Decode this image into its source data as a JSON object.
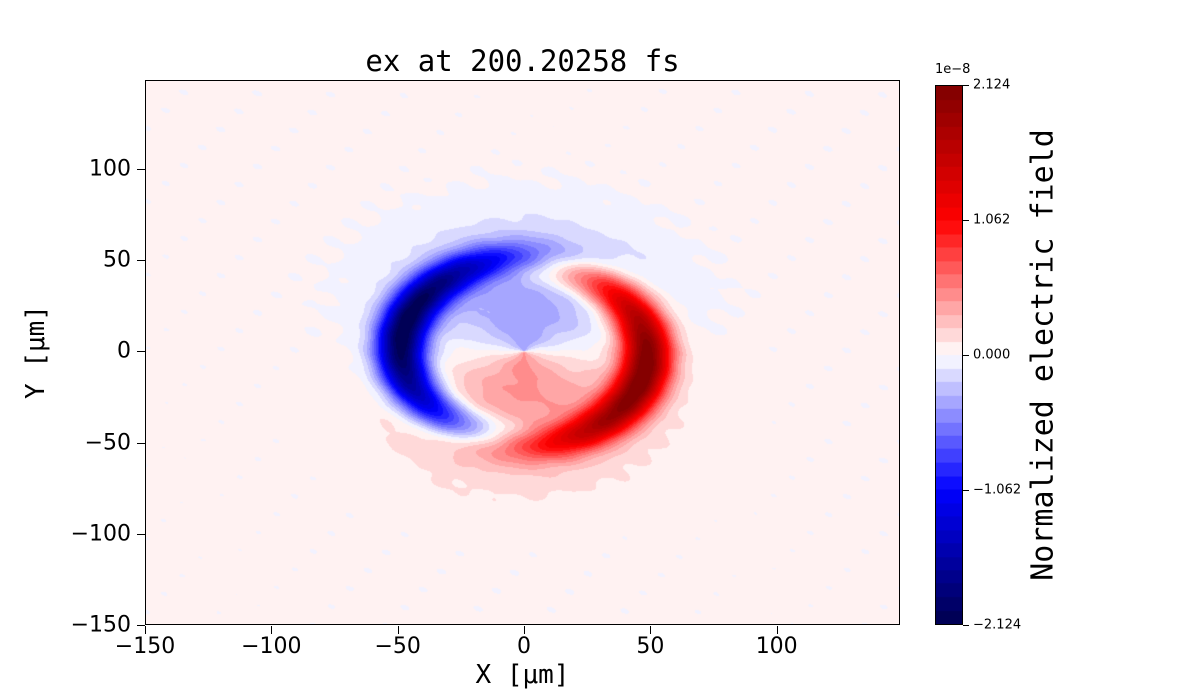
{
  "figure": {
    "background": "#ffffff"
  },
  "chart_data": {
    "type": "heatmap",
    "title": "ex at 200.20258 fs",
    "xlabel": "X [μm]",
    "ylabel": "Y [μm]",
    "xlim": [
      -150,
      148.8
    ],
    "ylim": [
      -150,
      148.8
    ],
    "xticks": {
      "values": [
        -150,
        -100,
        -50,
        0,
        50,
        100
      ],
      "labels": [
        "−150",
        "−100",
        "−50",
        "0",
        "50",
        "100"
      ]
    },
    "yticks": {
      "values": [
        100,
        50,
        0,
        -50,
        -100,
        -150
      ],
      "labels": [
        "100",
        "50",
        "0",
        "−50",
        "−100",
        "−150"
      ]
    },
    "grid": false,
    "colormap": {
      "name": "seismic",
      "stops": [
        [
          0.0,
          [
            0,
            0,
            77
          ]
        ],
        [
          0.25,
          [
            0,
            0,
            255
          ]
        ],
        [
          0.5,
          [
            255,
            255,
            255
          ]
        ],
        [
          0.75,
          [
            255,
            0,
            0
          ]
        ],
        [
          1.0,
          [
            127,
            0,
            0
          ]
        ]
      ]
    },
    "contour_levels": 40,
    "colorbar": {
      "label": "Normalized electric field",
      "offset_text": "1e−8",
      "vmin_display": -2.124,
      "vmax_display": 2.124,
      "tick_values": [
        2.124,
        1.062,
        0,
        -1.062,
        -2.124
      ],
      "tick_labels": [
        "2.124",
        "1.062",
        "0.000",
        "−1.062",
        "−2.124"
      ]
    },
    "field_model": {
      "description": "Snapshot of ex from a rotating dipole-like pulse: two spiral crescent lobes on a ring of radius ~50 μm (negative/blue on the left, positive/red on the right, peak |ex| ~ 2.124e-8), surrounded by a broad weak halo of opposite sign pattern (blue above, red below) extending to r ~ 95 μm.",
      "ring_radius_um": 49,
      "ring_width_um": 10,
      "spiral_twist_rad_per_um": 0.025,
      "rotation_rad": -0.15,
      "halo_amp": 0.14,
      "halo_radius_um": 62,
      "halo_power": 4,
      "outer_halo_amp": 0.06,
      "outer_halo_radius_um": 86,
      "outer_halo_power": 6,
      "background_bias": 0.01,
      "ripple_amp": 0.006
    }
  }
}
